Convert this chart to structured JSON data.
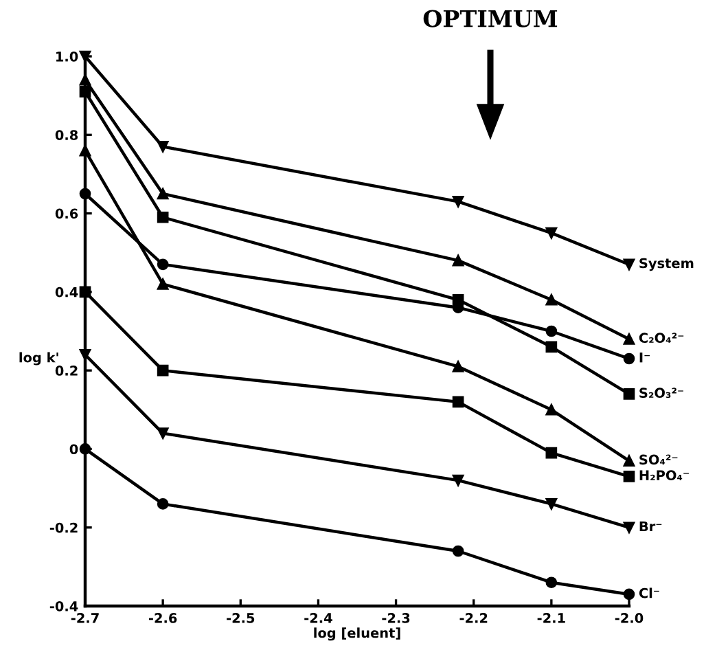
{
  "chart_data": {
    "type": "line",
    "xlabel": "log [eluent]",
    "ylabel": "log k'",
    "x": [
      -2.7,
      -2.6,
      -2.22,
      -2.1,
      -2.0
    ],
    "xlim": [
      -2.7,
      -2.0
    ],
    "xticks": [
      -2.7,
      -2.6,
      -2.5,
      -2.4,
      -2.3,
      -2.2,
      -2.1,
      {
        "value": -2.0,
        "label": "-2.0"
      }
    ],
    "ylim": [
      -0.4,
      1.0
    ],
    "yticks": [
      {
        "value": 1.0,
        "label": "1.0"
      },
      {
        "value": 0.8,
        "label": "0.8"
      },
      {
        "value": 0.6,
        "label": "0.6"
      },
      {
        "value": 0.4,
        "label": "0.4"
      },
      {
        "value": 0.2,
        "label": "0.2"
      },
      0,
      {
        "value": -0.2,
        "label": "-0.2"
      },
      {
        "value": -0.4,
        "label": "-0.4"
      }
    ],
    "grid": false,
    "legend": false,
    "line_style": "solid",
    "annotations": [
      "OPTIMUM"
    ],
    "series": [
      {
        "name": "System",
        "color": "#000000",
        "marker": "triangle_down",
        "values": [
          1.0,
          0.77,
          0.63,
          0.55,
          0.47
        ]
      },
      {
        "name": "C₂O₄²⁻",
        "color": "#000000",
        "marker": "triangle",
        "values": [
          0.94,
          0.65,
          0.48,
          0.38,
          0.28
        ]
      },
      {
        "name": "I⁻",
        "color": "#000000",
        "marker": "circle",
        "values": [
          0.65,
          0.47,
          0.36,
          0.3,
          0.23
        ]
      },
      {
        "name": "S₂O₃²⁻",
        "color": "#000000",
        "marker": "square",
        "values": [
          0.91,
          0.59,
          0.38,
          0.26,
          0.14
        ]
      },
      {
        "name": "SO₄²⁻",
        "color": "#000000",
        "marker": "triangle",
        "values": [
          0.76,
          0.42,
          0.21,
          0.1,
          -0.03
        ]
      },
      {
        "name": "H₂PO₄⁻",
        "color": "#000000",
        "marker": "square",
        "values": [
          0.4,
          0.2,
          0.12,
          -0.01,
          -0.07
        ]
      },
      {
        "name": "Br⁻",
        "color": "#000000",
        "marker": "triangle_down",
        "values": [
          0.24,
          0.04,
          -0.08,
          -0.14,
          -0.2
        ]
      },
      {
        "name": "Cl⁻",
        "color": "#000000",
        "marker": "circle",
        "values": [
          0.0,
          -0.14,
          -0.26,
          -0.34,
          -0.37
        ]
      }
    ]
  }
}
